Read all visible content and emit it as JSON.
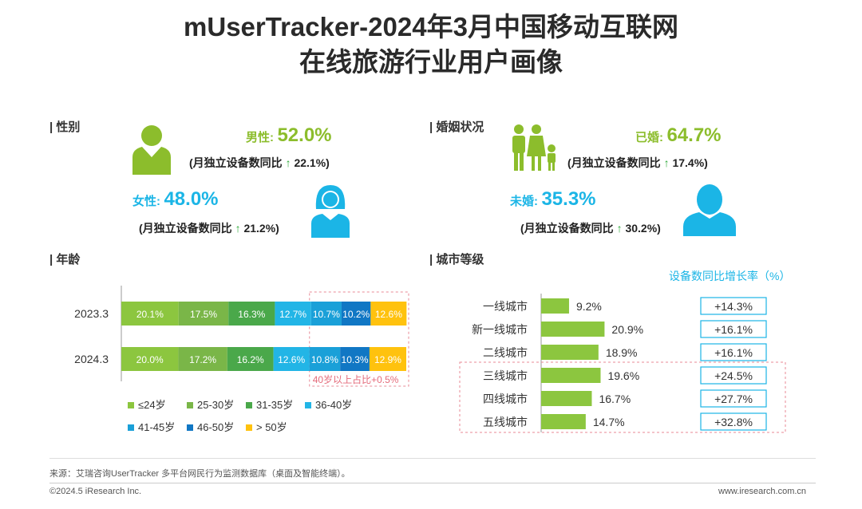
{
  "title": {
    "line1": "mUserTracker-2024年3月中国移动互联网",
    "line2": "在线旅游行业用户画像"
  },
  "gender": {
    "section_label": "| 性别",
    "male": {
      "label": "男性:",
      "value": "52.0%",
      "growth_prefix": "(月独立设备数同比 ",
      "arrow": "↑",
      "growth": "22.1%)"
    },
    "female": {
      "label": "女性:",
      "value": "48.0%",
      "growth_prefix": "(月独立设备数同比 ",
      "arrow": "↑",
      "growth": "21.2%)"
    }
  },
  "marriage": {
    "section_label": "| 婚姻状况",
    "married": {
      "label": "已婚:",
      "value": "64.7%",
      "growth_prefix": "(月独立设备数同比 ",
      "arrow": "↑",
      "growth": "17.4%)"
    },
    "unmarried": {
      "label": "未婚:",
      "value": "35.3%",
      "growth_prefix": "(月独立设备数同比 ",
      "arrow": "↑",
      "growth": "30.2%)"
    }
  },
  "age": {
    "section_label": "| 年龄",
    "annotation": "40岁以上占比+0.5%"
  },
  "city": {
    "section_label": "| 城市等级",
    "growth_header": "设备数同比增长率（%）"
  },
  "colors": {
    "green_text": "#8cbd2c",
    "cyan_text": "#1bb5e6",
    "age_series": [
      "#8cc63f",
      "#7ab648",
      "#4aa84a",
      "#22b5e6",
      "#1aa0d8",
      "#1177c4",
      "#ffc20e"
    ],
    "city_bar": "#8cc63f",
    "highlight_border": "#e88a96"
  },
  "chart_data": [
    {
      "type": "bar",
      "stacked": true,
      "orientation": "horizontal",
      "title": "年龄",
      "categories": [
        "2023.3",
        "2024.3"
      ],
      "series": [
        {
          "name": "≤24岁",
          "values": [
            20.1,
            20.0
          ],
          "labels": [
            "20.1%",
            "20.0%"
          ]
        },
        {
          "name": "25-30岁",
          "values": [
            17.5,
            17.2
          ],
          "labels": [
            "17.5%",
            "17.2%"
          ]
        },
        {
          "name": "31-35岁",
          "values": [
            16.3,
            16.2
          ],
          "labels": [
            "16.3%",
            "16.2%"
          ]
        },
        {
          "name": "36-40岁",
          "values": [
            12.7,
            12.6
          ],
          "labels": [
            "12.7%",
            "12.6%"
          ]
        },
        {
          "name": "41-45岁",
          "values": [
            10.7,
            10.8
          ],
          "labels": [
            "10.7%",
            "10.8%"
          ]
        },
        {
          "name": "46-50岁",
          "values": [
            10.2,
            10.3
          ],
          "labels": [
            "10.2%",
            "10.3%"
          ]
        },
        {
          "name": "> 50岁",
          "values": [
            12.6,
            12.9
          ],
          "labels": [
            "12.6%",
            "12.9%"
          ]
        }
      ],
      "xlim": [
        0,
        100
      ],
      "legend": "bottom"
    },
    {
      "type": "bar",
      "orientation": "horizontal",
      "title": "城市等级",
      "categories": [
        "一线城市",
        "新一线城市",
        "二线城市",
        "三线城市",
        "四线城市",
        "五线城市"
      ],
      "values": [
        9.2,
        20.9,
        18.9,
        19.6,
        16.7,
        14.7
      ],
      "labels": [
        "9.2%",
        "20.9%",
        "18.9%",
        "19.6%",
        "16.7%",
        "14.7%"
      ],
      "growth": [
        "+14.3%",
        "+16.1%",
        "+16.1%",
        "+24.5%",
        "+27.7%",
        "+32.8%"
      ],
      "xlim": [
        0,
        25
      ]
    }
  ],
  "footer": {
    "source": "来源：艾瑞咨询UserTracker 多平台网民行为监测数据库（桌面及智能终端）。",
    "copyright": "©2024.5 iResearch Inc.",
    "website": "www.iresearch.com.cn"
  }
}
